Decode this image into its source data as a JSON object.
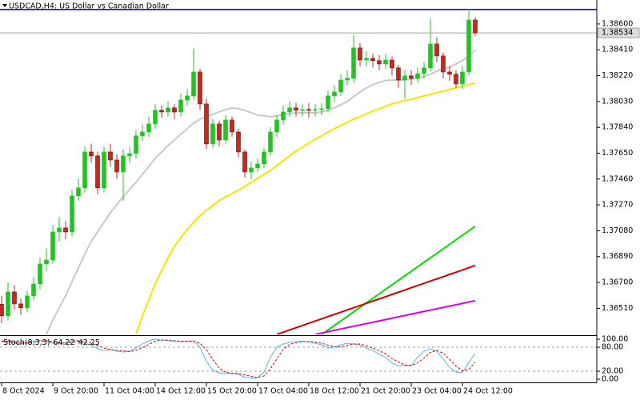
{
  "chart_data": [
    {
      "type": "candlestick",
      "title": "USDCAD,H4:  US Dollar vs Canadian Dollar",
      "categories": [
        "8 Oct 2024",
        null,
        null,
        null,
        null,
        null,
        null,
        null,
        "9 Oct 20:00",
        null,
        null,
        null,
        null,
        null,
        null,
        null,
        "11 Oct 04:00",
        null,
        null,
        null,
        null,
        null,
        null,
        null,
        "14 Oct 12:00",
        null,
        null,
        null,
        null,
        null,
        null,
        null,
        "15 Oct 20:00",
        null,
        null,
        null,
        null,
        null,
        null,
        null,
        "17 Oct 04:00",
        null,
        null,
        null,
        null,
        null,
        null,
        null,
        "18 Oct 12:00",
        null,
        null,
        null,
        null,
        null,
        null,
        null,
        "21 Oct 20:00",
        null,
        null,
        null,
        null,
        null,
        null,
        null,
        "23 Oct 04:00",
        null,
        null,
        null,
        null,
        null,
        null,
        null,
        "24 Oct 12:00",
        null,
        null
      ],
      "open": [
        1.3654,
        1.36454,
        1.3663,
        1.36542,
        1.36513,
        1.36601,
        1.36689,
        1.36836,
        1.36865,
        1.37071,
        1.37101,
        1.37071,
        1.37336,
        1.37395,
        1.37659,
        1.3763,
        1.37395,
        1.37659,
        1.376,
        1.37512,
        1.3763,
        1.37647,
        1.37777,
        1.37806,
        1.37865,
        1.37965,
        1.37953,
        1.37983,
        1.37953,
        1.38041,
        1.38071,
        1.38247,
        1.38012,
        1.37718,
        1.37865,
        1.37747,
        1.37894,
        1.37806,
        1.37659,
        1.37512,
        1.37542,
        1.37571,
        1.37659,
        1.37806,
        1.37894,
        1.37953,
        1.37983,
        1.37965,
        1.37971,
        1.37965,
        1.37971,
        1.37977,
        1.38071,
        1.381,
        1.38188,
        1.382,
        1.38424,
        1.38335,
        1.38347,
        1.3833,
        1.38306,
        1.38335,
        1.38277,
        1.38188,
        1.38218,
        1.382,
        1.38235,
        1.38277,
        1.38453,
        1.38365,
        1.38247,
        1.3823,
        1.38159,
        1.38247,
        1.38629
      ],
      "high": [
        1.366,
        1.367,
        1.3668,
        1.3658,
        1.3664,
        1.3674,
        1.3688,
        1.3695,
        1.3712,
        1.3718,
        1.3715,
        1.3738,
        1.3746,
        1.377,
        1.3772,
        1.3766,
        1.377,
        1.3772,
        1.3764,
        1.3768,
        1.377,
        1.3782,
        1.3786,
        1.3792,
        1.3801,
        1.38,
        1.3803,
        1.3801,
        1.3809,
        1.3812,
        1.3842,
        1.3827,
        1.3805,
        1.379,
        1.3789,
        1.3793,
        1.3792,
        1.3783,
        1.3768,
        1.3759,
        1.3761,
        1.3769,
        1.3784,
        1.3793,
        1.38,
        1.3803,
        1.3802,
        1.3801,
        1.3802,
        1.3801,
        1.3802,
        1.3811,
        1.3815,
        1.3823,
        1.3826,
        1.3852,
        1.3846,
        1.384,
        1.3838,
        1.3837,
        1.3838,
        1.3836,
        1.383,
        1.3826,
        1.3826,
        1.3828,
        1.3832,
        1.3864,
        1.385,
        1.3839,
        1.3829,
        1.3826,
        1.3829,
        1.3871,
        1.3865
      ],
      "low": [
        1.364,
        1.3642,
        1.365,
        1.3646,
        1.3648,
        1.3657,
        1.3665,
        1.3678,
        1.3684,
        1.37,
        1.3702,
        1.3704,
        1.373,
        1.3736,
        1.3758,
        1.3735,
        1.3736,
        1.3755,
        1.3746,
        1.373,
        1.3758,
        1.3761,
        1.3774,
        1.3777,
        1.3783,
        1.3791,
        1.3792,
        1.379,
        1.3792,
        1.38,
        1.3804,
        1.3797,
        1.3768,
        1.3769,
        1.377,
        1.3772,
        1.3777,
        1.3762,
        1.3747,
        1.3746,
        1.3751,
        1.3754,
        1.3763,
        1.3777,
        1.3786,
        1.3792,
        1.3792,
        1.3792,
        1.3791,
        1.3792,
        1.3793,
        1.3795,
        1.3803,
        1.3807,
        1.3815,
        1.3817,
        1.3829,
        1.3829,
        1.3828,
        1.3826,
        1.3827,
        1.3822,
        1.3813,
        1.3805,
        1.3815,
        1.3817,
        1.382,
        1.3825,
        1.3832,
        1.382,
        1.3818,
        1.3813,
        1.3812,
        1.3822,
        1.3851
      ],
      "close": [
        1.36454,
        1.3663,
        1.36542,
        1.36513,
        1.36601,
        1.36689,
        1.36836,
        1.36865,
        1.37071,
        1.37101,
        1.37071,
        1.37336,
        1.37395,
        1.37659,
        1.3763,
        1.37395,
        1.37659,
        1.376,
        1.37512,
        1.3763,
        1.37647,
        1.37777,
        1.37806,
        1.37865,
        1.37965,
        1.37953,
        1.37983,
        1.37953,
        1.38041,
        1.38071,
        1.38247,
        1.38012,
        1.37718,
        1.37865,
        1.37747,
        1.37894,
        1.37806,
        1.37659,
        1.37512,
        1.37542,
        1.37571,
        1.37659,
        1.37806,
        1.37894,
        1.37953,
        1.37983,
        1.37965,
        1.37971,
        1.37965,
        1.37971,
        1.37977,
        1.38071,
        1.381,
        1.38188,
        1.382,
        1.38424,
        1.38335,
        1.38347,
        1.3833,
        1.38306,
        1.38335,
        1.38277,
        1.38188,
        1.38218,
        1.382,
        1.38235,
        1.38277,
        1.38453,
        1.38365,
        1.38247,
        1.3823,
        1.38159,
        1.38247,
        1.38629,
        1.38534
      ],
      "up_color": "#22c322",
      "down_color": "#c8281e",
      "ylim": [
        1.36318,
        1.38776
      ],
      "yticks": [
        {
          "value": 1.386,
          "label": "1.38600"
        },
        {
          "value": 1.3841,
          "label": "1.38410"
        },
        {
          "value": 1.3822,
          "label": "1.38220"
        },
        {
          "value": 1.3803,
          "label": "1.38030"
        },
        {
          "value": 1.3784,
          "label": "1.37840"
        },
        {
          "value": 1.3765,
          "label": "1.37650"
        },
        {
          "value": 1.3746,
          "label": "1.37460"
        },
        {
          "value": 1.3727,
          "label": "1.37270"
        },
        {
          "value": 1.3708,
          "label": "1.37080"
        },
        {
          "value": 1.3689,
          "label": "1.36890"
        },
        {
          "value": 1.367,
          "label": "1.36700"
        },
        {
          "value": 1.3651,
          "label": "1.36510"
        }
      ],
      "bid": 1.38534,
      "bid_color": "#a0a0a0",
      "hline": 1.38706,
      "hline_color": "#00008b",
      "series": [
        {
          "color": "#c8c8c8",
          "values": [
            null,
            null,
            null,
            null,
            null,
            null,
            null,
            1.36319,
            1.36424,
            1.36513,
            1.36601,
            1.36707,
            1.36807,
            1.36907,
            1.37001,
            1.37071,
            1.37142,
            1.37212,
            1.37271,
            1.3733,
            1.37383,
            1.37436,
            1.37495,
            1.37553,
            1.37612,
            1.37659,
            1.37706,
            1.37747,
            1.37789,
            1.3783,
            1.37871,
            1.379,
            1.37918,
            1.37936,
            1.37953,
            1.37971,
            1.37983,
            1.37977,
            1.37965,
            1.37947,
            1.3793,
            1.37924,
            1.37918,
            1.37924,
            1.37936,
            1.37941,
            1.37947,
            1.37947,
            1.37947,
            1.37947,
            1.37953,
            1.37965,
            1.37983,
            1.38006,
            1.3803,
            1.38065,
            1.381,
            1.3813,
            1.38153,
            1.38171,
            1.38183,
            1.38188,
            1.38188,
            1.38188,
            1.38194,
            1.382,
            1.38212,
            1.3823,
            1.38253,
            1.38271,
            1.38282,
            1.38306,
            1.3833,
            1.38365,
            1.38406
          ]
        },
        {
          "color": "#f5e600",
          "values": [
            null,
            null,
            null,
            null,
            null,
            null,
            null,
            null,
            null,
            null,
            null,
            null,
            null,
            null,
            null,
            null,
            null,
            null,
            null,
            null,
            null,
            1.36319,
            1.36454,
            1.36571,
            1.36689,
            1.36789,
            1.36883,
            1.36965,
            1.3703,
            1.37089,
            1.37142,
            1.37189,
            1.3723,
            1.37265,
            1.37301,
            1.3733,
            1.37353,
            1.37377,
            1.37406,
            1.37436,
            1.37465,
            1.37495,
            1.37524,
            1.37559,
            1.37595,
            1.3763,
            1.37665,
            1.37694,
            1.37724,
            1.37753,
            1.37777,
            1.37806,
            1.3783,
            1.37853,
            1.37877,
            1.379,
            1.37918,
            1.37941,
            1.37959,
            1.37977,
            1.37994,
            1.38012,
            1.38024,
            1.38036,
            1.38047,
            1.38059,
            1.38071,
            1.38083,
            1.38094,
            1.38106,
            1.38118,
            1.3813,
            1.38141,
            1.38153,
            1.38165
          ]
        },
        {
          "color": "#00dd00",
          "values": [
            null,
            null,
            null,
            null,
            null,
            null,
            null,
            null,
            null,
            null,
            null,
            null,
            null,
            null,
            null,
            null,
            null,
            null,
            null,
            null,
            null,
            null,
            null,
            null,
            null,
            null,
            null,
            null,
            null,
            null,
            null,
            null,
            null,
            null,
            null,
            null,
            null,
            null,
            null,
            null,
            null,
            null,
            null,
            null,
            null,
            null,
            null,
            null,
            null,
            null,
            1.36318,
            1.36351,
            1.36384,
            1.36417,
            1.3645,
            1.36484,
            1.36517,
            1.3655,
            1.36583,
            1.36616,
            1.36649,
            1.36682,
            1.36715,
            1.36748,
            1.36781,
            1.36815,
            1.36848,
            1.36881,
            1.36914,
            1.36947,
            1.3698,
            1.37013,
            1.37046,
            1.37079,
            1.37112
          ]
        },
        {
          "color": "#d40000",
          "values": [
            null,
            null,
            null,
            null,
            null,
            null,
            null,
            null,
            null,
            null,
            null,
            null,
            null,
            null,
            null,
            null,
            null,
            null,
            null,
            null,
            null,
            null,
            null,
            null,
            null,
            null,
            null,
            null,
            null,
            null,
            null,
            null,
            null,
            null,
            null,
            null,
            null,
            null,
            null,
            null,
            null,
            null,
            null,
            1.36318,
            1.36334,
            1.36351,
            1.36367,
            1.36383,
            1.364,
            1.36416,
            1.36432,
            1.36449,
            1.36465,
            1.36481,
            1.36498,
            1.36514,
            1.3653,
            1.36546,
            1.36563,
            1.36579,
            1.36595,
            1.36612,
            1.36628,
            1.36644,
            1.36661,
            1.36677,
            1.36693,
            1.3671,
            1.36726,
            1.36742,
            1.36759,
            1.36775,
            1.36791,
            1.36808,
            1.36824
          ]
        },
        {
          "color": "#e000e0",
          "values": [
            null,
            null,
            null,
            null,
            null,
            null,
            null,
            null,
            null,
            null,
            null,
            null,
            null,
            null,
            null,
            null,
            null,
            null,
            null,
            null,
            null,
            null,
            null,
            null,
            null,
            null,
            null,
            null,
            null,
            null,
            null,
            null,
            null,
            null,
            null,
            null,
            null,
            null,
            null,
            null,
            null,
            null,
            null,
            null,
            null,
            null,
            null,
            null,
            null,
            1.36318,
            1.36328,
            1.36338,
            1.36348,
            1.36358,
            1.36368,
            1.36378,
            1.36387,
            1.36397,
            1.36407,
            1.36417,
            1.36427,
            1.36437,
            1.36447,
            1.36457,
            1.36467,
            1.36477,
            1.36487,
            1.36497,
            1.36506,
            1.36516,
            1.36526,
            1.36536,
            1.36546,
            1.36556,
            1.36566
          ]
        }
      ]
    },
    {
      "type": "line",
      "title": "Stoch(8,3,3)",
      "ylim": [
        -8,
        108
      ],
      "yticks": [
        {
          "value": 100,
          "label": "100.00"
        },
        {
          "value": 80,
          "label": "80.00"
        },
        {
          "value": 20,
          "label": "20.00"
        },
        {
          "value": 0,
          "label": "0.00"
        }
      ],
      "levels": [
        80,
        20
      ],
      "series": [
        {
          "color": "#5ab4dc",
          "dash": false,
          "values": [
            96,
            94,
            90,
            88,
            92,
            95,
            97,
            96,
            90,
            88,
            92,
            96,
            97,
            90,
            85,
            76,
            72,
            74,
            70,
            68,
            70,
            78,
            88,
            96,
            100,
            98,
            96,
            95,
            94,
            95,
            96,
            80,
            45,
            22,
            16,
            14,
            15,
            12,
            5,
            3,
            4,
            18,
            55,
            80,
            88,
            92,
            94,
            95,
            93,
            90,
            86,
            78,
            80,
            86,
            90,
            88,
            85,
            78,
            72,
            62,
            55,
            40,
            34,
            34,
            35,
            55,
            70,
            76,
            70,
            50,
            30,
            18,
            16,
            42,
            64.22
          ]
        },
        {
          "color": "#e00000",
          "dash": true,
          "values": [
            95,
            95,
            93,
            91,
            90,
            92,
            95,
            96,
            94,
            91,
            90,
            92,
            95,
            94,
            91,
            84,
            78,
            74,
            72,
            71,
            69,
            72,
            79,
            87,
            95,
            98,
            98,
            96,
            95,
            95,
            95,
            90,
            74,
            49,
            28,
            17,
            15,
            14,
            11,
            7,
            4,
            8,
            26,
            51,
            74,
            87,
            91,
            94,
            94,
            93,
            90,
            85,
            81,
            81,
            85,
            88,
            88,
            84,
            78,
            71,
            63,
            52,
            43,
            36,
            34,
            41,
            53,
            67,
            72,
            65,
            50,
            33,
            21,
            25,
            42.25
          ]
        }
      ]
    }
  ]
}
